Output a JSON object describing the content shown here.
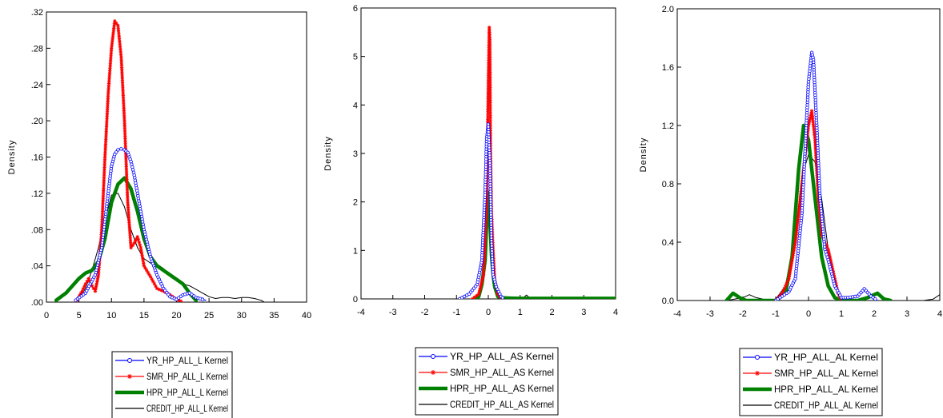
{
  "chart_data": [
    {
      "type": "line",
      "id": "L",
      "ylabel": "Density",
      "xlim": [
        0,
        40
      ],
      "ylim": [
        0,
        0.32
      ],
      "xticks": [
        0,
        5,
        10,
        15,
        20,
        25,
        30,
        35,
        40
      ],
      "xtick_labels": [
        "0",
        "5",
        "10",
        "15",
        "20",
        "25",
        "30",
        "35",
        "40"
      ],
      "yticks": [
        0,
        0.04,
        0.08,
        0.12,
        0.16,
        0.2,
        0.24,
        0.28,
        0.32
      ],
      "ytick_labels": [
        ".00",
        ".04",
        ".08",
        ".12",
        ".16",
        ".20",
        ".24",
        ".28",
        ".32"
      ],
      "legend_position": "below",
      "series": [
        {
          "name": "YR_HP_ALL_L Kernel",
          "color": "#0000ff",
          "style": "blue-circle",
          "x": [
            4.5,
            6,
            7.5,
            8.5,
            9.5,
            10,
            10.5,
            11,
            11.5,
            12,
            12.5,
            13,
            13.5,
            14,
            15,
            16,
            17,
            18,
            19,
            20,
            21,
            22,
            23,
            24,
            24.5
          ],
          "y": [
            0.002,
            0.01,
            0.03,
            0.06,
            0.12,
            0.15,
            0.163,
            0.168,
            0.169,
            0.168,
            0.165,
            0.155,
            0.14,
            0.12,
            0.08,
            0.05,
            0.03,
            0.015,
            0.006,
            0.003,
            0.008,
            0.01,
            0.005,
            0.003,
            0.002
          ]
        },
        {
          "name": "SMR_HP_ALL_L Kernel",
          "color": "#ff0000",
          "style": "red-star",
          "x": [
            4.5,
            5.5,
            6,
            6.5,
            7,
            7.5,
            8,
            8.5,
            9,
            9.5,
            10,
            10.5,
            11,
            11.5,
            12,
            12.5,
            13,
            13.5,
            14,
            14.5,
            15,
            16,
            17,
            18,
            19,
            20,
            21
          ],
          "y": [
            0,
            0.012,
            0.02,
            0.026,
            0.018,
            0.012,
            0.03,
            0.08,
            0.16,
            0.23,
            0.28,
            0.31,
            0.305,
            0.27,
            0.2,
            0.11,
            0.06,
            0.065,
            0.072,
            0.06,
            0.04,
            0.028,
            0.015,
            0.012,
            0.008,
            0.003,
            0
          ]
        },
        {
          "name": "HPR_HP_ALL_L Kernel",
          "color": "#008000",
          "style": "green-thick",
          "x": [
            1.5,
            3,
            4,
            5,
            6,
            7,
            8,
            9,
            10,
            11,
            12,
            13,
            14,
            15,
            16,
            17,
            18,
            19,
            20,
            21,
            22,
            23
          ],
          "y": [
            0.002,
            0.01,
            0.018,
            0.026,
            0.032,
            0.035,
            0.045,
            0.07,
            0.11,
            0.13,
            0.137,
            0.125,
            0.1,
            0.07,
            0.05,
            0.04,
            0.035,
            0.03,
            0.025,
            0.02,
            0.01,
            0.002
          ]
        },
        {
          "name": "CREDIT_HP_ALL_L Kernel",
          "color": "#000000",
          "style": "black-thin",
          "x": [
            5,
            6,
            7,
            8,
            9,
            10,
            11,
            12,
            13,
            14,
            15,
            16,
            17,
            18,
            19,
            20,
            21,
            22,
            23,
            24,
            25,
            26,
            27,
            28,
            29,
            30,
            31,
            32,
            33,
            33.5
          ],
          "y": [
            0.004,
            0.015,
            0.035,
            0.06,
            0.09,
            0.118,
            0.12,
            0.105,
            0.08,
            0.06,
            0.048,
            0.043,
            0.042,
            0.037,
            0.03,
            0.025,
            0.02,
            0.018,
            0.014,
            0.01,
            0.006,
            0.004,
            0.005,
            0.005,
            0.004,
            0.005,
            0.005,
            0.004,
            0.002,
            0
          ]
        }
      ]
    },
    {
      "type": "line",
      "id": "AS",
      "ylabel": "Density",
      "xlim": [
        -4,
        4
      ],
      "ylim": [
        0,
        6
      ],
      "xticks": [
        -4,
        -3,
        -2,
        -1,
        0,
        1,
        2,
        3,
        4
      ],
      "xtick_labels": [
        "-4",
        "-3",
        "-2",
        "-1",
        "0",
        "1",
        "2",
        "3",
        "4"
      ],
      "yticks": [
        0,
        1,
        2,
        3,
        4,
        5,
        6
      ],
      "ytick_labels": [
        "0",
        "1",
        "2",
        "3",
        "4",
        "5",
        "6"
      ],
      "legend_position": "below",
      "series": [
        {
          "name": "YR_HP_ALL_AS Kernel",
          "color": "#0000ff",
          "style": "blue-circle",
          "x": [
            -0.9,
            -0.6,
            -0.35,
            -0.2,
            -0.1,
            -0.05,
            0,
            0.05,
            0.1,
            0.15,
            0.25,
            0.4,
            0.5
          ],
          "y": [
            0,
            0.1,
            0.3,
            0.8,
            2.2,
            3.3,
            3.6,
            2.8,
            1.2,
            0.5,
            0.25,
            0.05,
            0
          ]
        },
        {
          "name": "SMR_HP_ALL_AS Kernel",
          "color": "#ff0000",
          "style": "red-star",
          "x": [
            -0.5,
            -0.3,
            -0.15,
            -0.05,
            0,
            0.03,
            0.05,
            0.07,
            0.1,
            0.15,
            0.2,
            0.3,
            0.4
          ],
          "y": [
            0,
            0.1,
            0.5,
            2.0,
            4.5,
            5.6,
            5.3,
            3.0,
            1.8,
            1.0,
            0.4,
            0.1,
            0
          ]
        },
        {
          "name": "HPR_HP_ALL_AS Kernel",
          "color": "#008000",
          "style": "green-thick",
          "x": [
            -0.4,
            -0.3,
            -0.2,
            -0.1,
            -0.05,
            0,
            0.05,
            0.1,
            0.15,
            0.2,
            0.3,
            0.5,
            1,
            2,
            3,
            4
          ],
          "y": [
            0,
            0.05,
            0.3,
            0.8,
            1.6,
            2.2,
            1.6,
            0.9,
            0.5,
            0.25,
            0.05,
            0.02,
            0.01,
            0.01,
            0.01,
            0.01
          ]
        },
        {
          "name": "CREDIT_HP_ALL_AS Kernel",
          "color": "#000000",
          "style": "black-thin",
          "x": [
            -0.5,
            -0.3,
            -0.15,
            -0.05,
            0,
            0.05,
            0.1,
            0.15,
            0.25,
            0.4,
            1.0,
            1.1,
            1.2,
            1.3,
            1.5,
            4
          ],
          "y": [
            0,
            0.1,
            0.5,
            1.4,
            2.0,
            1.6,
            0.9,
            0.5,
            0.1,
            0,
            0,
            0.02,
            0.08,
            0.02,
            0,
            0
          ]
        }
      ]
    },
    {
      "type": "line",
      "id": "AL",
      "ylabel": "Density",
      "xlim": [
        -4,
        4
      ],
      "ylim": [
        0,
        2.0
      ],
      "xticks": [
        -4,
        -3,
        -2,
        -1,
        0,
        1,
        2,
        3,
        4
      ],
      "xtick_labels": [
        "-4",
        "-3",
        "-2",
        "-1",
        "0",
        "1",
        "2",
        "3",
        "4"
      ],
      "yticks": [
        0,
        0.4,
        0.8,
        1.2,
        1.6,
        2.0
      ],
      "ytick_labels": [
        "0.0",
        "0.4",
        "0.8",
        "1.2",
        "1.6",
        "2.0"
      ],
      "legend_position": "below",
      "series": [
        {
          "name": "YR_HP_ALL_AL Kernel",
          "color": "#0000ff",
          "style": "blue-circle",
          "x": [
            -1.0,
            -0.8,
            -0.6,
            -0.4,
            -0.2,
            0,
            0.1,
            0.15,
            0.25,
            0.35,
            0.5,
            0.6,
            0.8,
            1.0,
            1.2,
            1.5,
            1.7,
            1.9,
            2.1
          ],
          "y": [
            0,
            0.03,
            0.06,
            0.15,
            0.6,
            1.5,
            1.7,
            1.65,
            1.2,
            0.7,
            0.35,
            0.28,
            0.1,
            0.02,
            0.02,
            0.03,
            0.08,
            0.03,
            0
          ]
        },
        {
          "name": "SMR_HP_ALL_AL Kernel",
          "color": "#ff0000",
          "style": "red-star",
          "x": [
            -1.0,
            -0.8,
            -0.6,
            -0.4,
            -0.2,
            0,
            0.1,
            0.2,
            0.3,
            0.4,
            0.5,
            0.6,
            0.7,
            0.8,
            0.9,
            1.0
          ],
          "y": [
            0,
            0.05,
            0.15,
            0.4,
            0.8,
            1.2,
            1.3,
            1.1,
            0.7,
            0.45,
            0.4,
            0.35,
            0.25,
            0.15,
            0.05,
            0
          ]
        },
        {
          "name": "HPR_HP_ALL_AL Kernel",
          "color": "#008000",
          "style": "green-thick",
          "x": [
            -2.5,
            -2.3,
            -2.1,
            -1.9,
            -1.5,
            -1.0,
            -0.7,
            -0.5,
            -0.3,
            -0.15,
            0,
            0.2,
            0.4,
            0.6,
            0.8,
            1.0,
            1.5,
            1.8,
            2.1,
            2.3,
            2.5
          ],
          "y": [
            0,
            0.05,
            0.02,
            0,
            0,
            0,
            0.05,
            0.3,
            0.9,
            1.2,
            1.1,
            0.7,
            0.3,
            0.1,
            0.02,
            0,
            0,
            0.02,
            0.05,
            0.01,
            0
          ]
        },
        {
          "name": "CREDIT_HP_ALL_AL Kernel",
          "color": "#000000",
          "style": "black-thin",
          "x": [
            -2.5,
            -2.0,
            -1.8,
            -1.6,
            -1.2,
            -1.0,
            -0.7,
            -0.4,
            -0.2,
            0,
            0.2,
            0.4,
            0.6,
            0.8,
            1.0,
            1.2,
            3.5,
            3.8,
            4.0
          ],
          "y": [
            0,
            0.02,
            0.04,
            0.02,
            0,
            0.01,
            0.1,
            0.45,
            0.85,
            1.0,
            0.95,
            0.7,
            0.35,
            0.1,
            0.02,
            0,
            0,
            0.01,
            0.04
          ]
        }
      ]
    }
  ]
}
